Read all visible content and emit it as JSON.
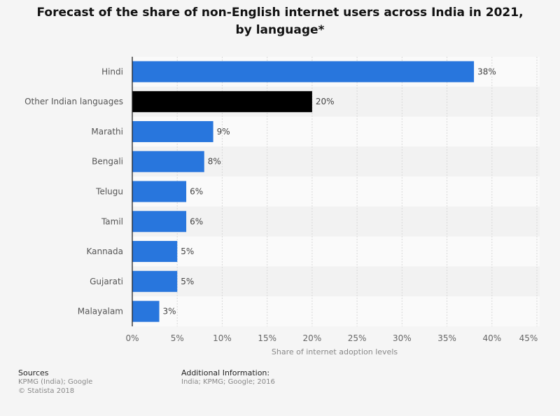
{
  "chart_data": {
    "type": "bar",
    "orientation": "horizontal",
    "title": "Forecast of the share of non-English internet users across India in 2021, by language*",
    "categories": [
      "Hindi",
      "Other Indian languages",
      "Marathi",
      "Bengali",
      "Telugu",
      "Tamil",
      "Kannada",
      "Gujarati",
      "Malayalam"
    ],
    "values": [
      38,
      20,
      9,
      8,
      6,
      6,
      5,
      5,
      3
    ],
    "value_labels": [
      "38%",
      "20%",
      "9%",
      "8%",
      "6%",
      "6%",
      "5%",
      "5%",
      "3%"
    ],
    "highlight_index": 1,
    "xlabel": "Share of internet adoption levels",
    "ylabel": "",
    "xlim": [
      0,
      45
    ],
    "xticks": [
      0,
      5,
      10,
      15,
      20,
      25,
      30,
      35,
      40,
      45
    ],
    "xtick_labels": [
      "0%",
      "5%",
      "10%",
      "15%",
      "20%",
      "25%",
      "30%",
      "35%",
      "40%",
      "45%"
    ],
    "grid": true,
    "colors": {
      "bar": "#2876dd",
      "highlight": "#000000"
    }
  },
  "footer": {
    "sources_heading": "Sources",
    "sources": "KPMG (India); Google",
    "copyright": "© Statista 2018",
    "additional_heading": "Additional Information:",
    "additional": "India; KPMG; Google; 2016"
  }
}
